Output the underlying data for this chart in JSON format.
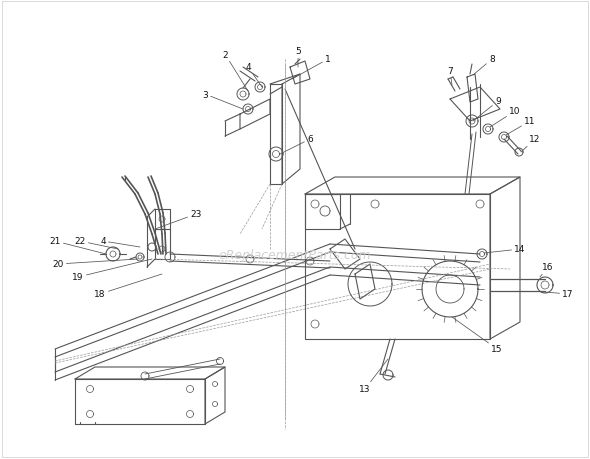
{
  "bg_color": "#ffffff",
  "line_color": "#555555",
  "label_color": "#111111",
  "watermark": "eReplacementParts.com",
  "watermark_color": "#cccccc",
  "lw": 0.8,
  "label_fs": 6.5
}
